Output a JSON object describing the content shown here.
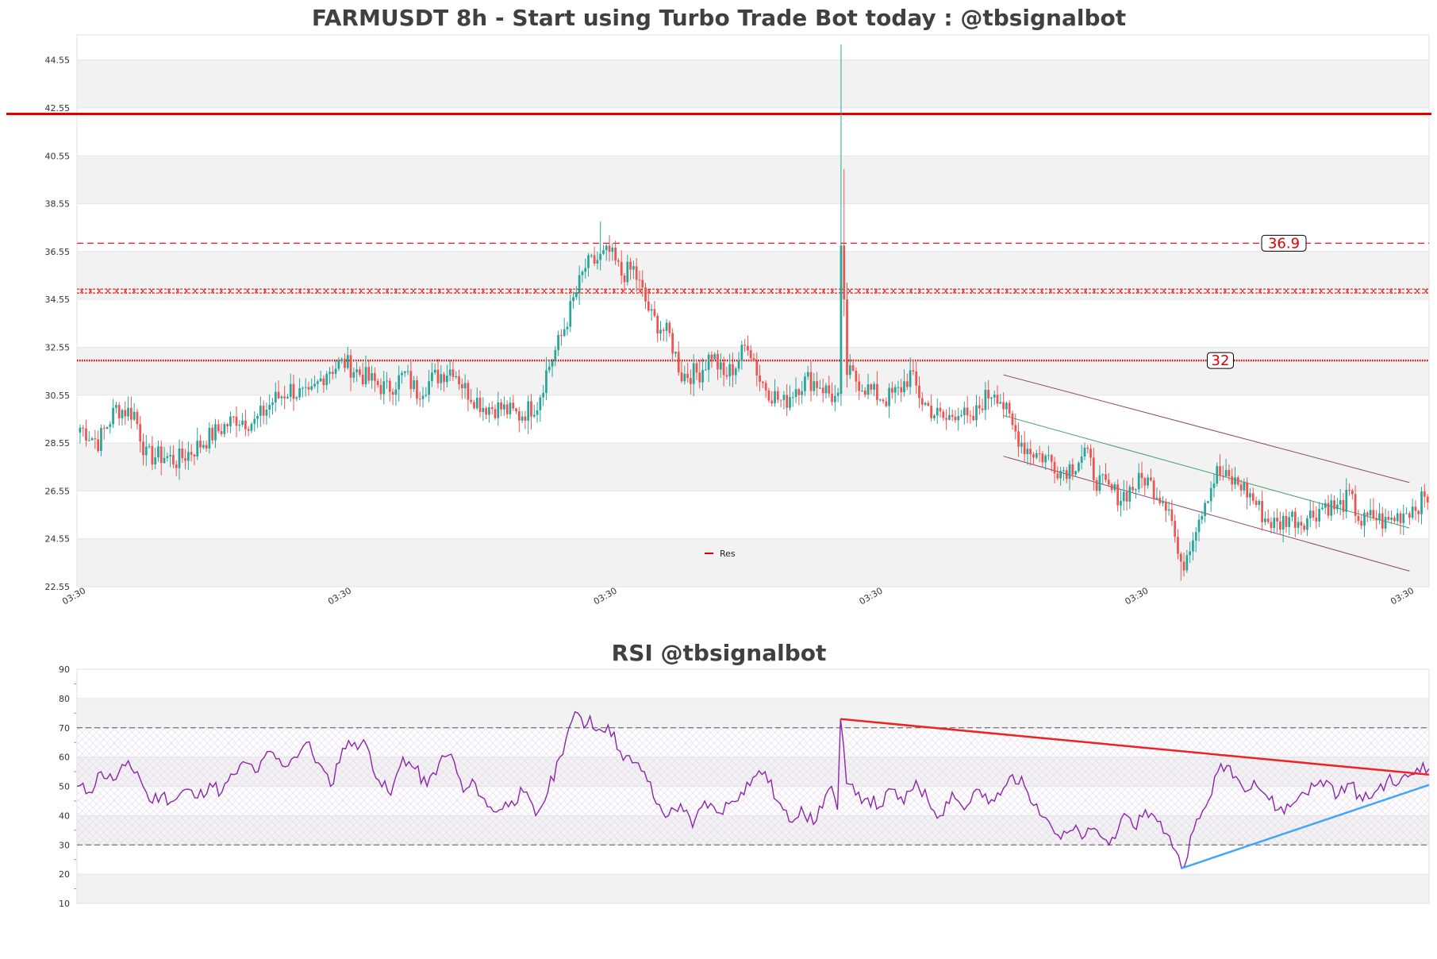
{
  "colors": {
    "up": "#26a69a",
    "down": "#ef5350",
    "resistance": "#e00000",
    "rsi_line": "#8e24aa",
    "rsi_up_trend": "#42a5f5",
    "rsi_down_trend": "#ee2222",
    "channel": "#8a4a68",
    "channel_mid": "#3ea36a",
    "band_shade": "#f2f2f2"
  },
  "chart_data": [
    {
      "type": "candlestick",
      "title": "FARMUSDT 8h - Start using Turbo Trade Bot today : @tbsignalbot",
      "ylim": [
        22.55,
        45.6
      ],
      "yticks": [
        "22.55",
        "24.55",
        "26.55",
        "28.55",
        "30.55",
        "32.55",
        "34.55",
        "36.55",
        "38.55",
        "40.55",
        "42.55",
        "44.55"
      ],
      "xticks": [
        "03:30",
        "03:30",
        "03:30",
        "03:30",
        "03:30",
        "03:30"
      ],
      "legend": {
        "label": "Res",
        "placement": "bottom-center"
      },
      "levels": [
        {
          "value": 42.3,
          "style": "solid",
          "label": ""
        },
        {
          "value": 36.9,
          "style": "dashed",
          "label": "36.9"
        },
        {
          "value": 34.9,
          "style": "crossed",
          "label": ""
        },
        {
          "value": 32.0,
          "style": "dotted",
          "label": "32"
        }
      ],
      "close_path": [
        [
          0,
          29.2
        ],
        [
          6,
          28.6
        ],
        [
          12,
          30.0
        ],
        [
          18,
          29.8
        ],
        [
          22,
          28.0
        ],
        [
          28,
          28.0
        ],
        [
          32,
          27.8
        ],
        [
          38,
          28.3
        ],
        [
          44,
          28.9
        ],
        [
          52,
          29.6
        ],
        [
          58,
          29.4
        ],
        [
          64,
          30.3
        ],
        [
          70,
          30.8
        ],
        [
          76,
          30.4
        ],
        [
          82,
          31.6
        ],
        [
          88,
          31.9
        ],
        [
          96,
          31.2
        ],
        [
          102,
          30.8
        ],
        [
          108,
          31.4
        ],
        [
          112,
          30.7
        ],
        [
          118,
          31.3
        ],
        [
          124,
          31.7
        ],
        [
          128,
          30.8
        ],
        [
          134,
          30.1
        ],
        [
          140,
          30.0
        ],
        [
          146,
          29.7
        ],
        [
          152,
          30.2
        ],
        [
          155,
          31.5
        ],
        [
          160,
          33.0
        ],
        [
          164,
          34.5
        ],
        [
          168,
          35.9
        ],
        [
          172,
          36.2
        ],
        [
          176,
          36.5
        ],
        [
          180,
          35.6
        ],
        [
          184,
          35.8
        ],
        [
          190,
          33.8
        ],
        [
          196,
          33.0
        ],
        [
          200,
          31.4
        ],
        [
          206,
          31.5
        ],
        [
          210,
          32.3
        ],
        [
          214,
          31.3
        ],
        [
          218,
          31.8
        ],
        [
          222,
          32.8
        ],
        [
          226,
          31.2
        ],
        [
          230,
          30.6
        ],
        [
          234,
          30.2
        ],
        [
          238,
          30.9
        ],
        [
          242,
          31.2
        ],
        [
          246,
          31.0
        ],
        [
          250,
          30.5
        ],
        [
          252,
          30.3
        ],
        [
          253,
          36.8
        ],
        [
          255,
          31.5
        ],
        [
          260,
          31.0
        ],
        [
          264,
          30.6
        ],
        [
          268,
          30.4
        ],
        [
          272,
          30.7
        ],
        [
          276,
          31.4
        ],
        [
          280,
          30.3
        ],
        [
          284,
          29.8
        ],
        [
          288,
          29.5
        ],
        [
          292,
          30.0
        ],
        [
          296,
          29.3
        ],
        [
          300,
          30.3
        ],
        [
          304,
          30.8
        ],
        [
          306,
          30.4
        ],
        [
          310,
          29.2
        ],
        [
          314,
          28.4
        ],
        [
          318,
          28.1
        ],
        [
          322,
          27.9
        ],
        [
          326,
          27.4
        ],
        [
          330,
          27.6
        ],
        [
          334,
          28.2
        ],
        [
          338,
          27.0
        ],
        [
          342,
          26.6
        ],
        [
          346,
          26.3
        ],
        [
          350,
          26.7
        ],
        [
          354,
          27.1
        ],
        [
          358,
          26.5
        ],
        [
          362,
          26.0
        ],
        [
          364,
          24.6
        ],
        [
          366,
          23.2
        ],
        [
          370,
          24.8
        ],
        [
          374,
          26.2
        ],
        [
          378,
          27.3
        ],
        [
          382,
          27.0
        ],
        [
          386,
          26.8
        ],
        [
          390,
          26.2
        ],
        [
          394,
          25.4
        ],
        [
          398,
          25.1
        ],
        [
          402,
          25.5
        ],
        [
          406,
          25.3
        ],
        [
          410,
          25.6
        ],
        [
          414,
          26.0
        ],
        [
          418,
          25.8
        ],
        [
          422,
          26.3
        ],
        [
          426,
          25.2
        ],
        [
          430,
          25.5
        ],
        [
          434,
          25.2
        ],
        [
          438,
          25.5
        ],
        [
          442,
          25.8
        ],
        [
          446,
          26.1
        ],
        [
          448,
          26.3
        ]
      ],
      "spike": {
        "index": 253,
        "open": 30.6,
        "close": 36.8,
        "high": 45.2,
        "low": 30.1
      },
      "channel": {
        "upper": [
          [
            307,
            31.4
          ],
          [
            442,
            26.9
          ]
        ],
        "lower": [
          [
            307,
            28.0
          ],
          [
            442,
            23.2
          ]
        ],
        "mid": [
          [
            307,
            29.7
          ],
          [
            442,
            25.0
          ]
        ]
      },
      "candle_count": 449,
      "seed": 7
    },
    {
      "type": "line",
      "title": "RSI @tbsignalbot",
      "ylim": [
        10,
        90
      ],
      "yticks": [
        "10",
        "20",
        "30",
        "40",
        "50",
        "60",
        "70",
        "80",
        "90"
      ],
      "overbought": 70,
      "oversold": 30,
      "rsi_path": [
        [
          0,
          50
        ],
        [
          4,
          48
        ],
        [
          8,
          55
        ],
        [
          12,
          52
        ],
        [
          16,
          57
        ],
        [
          20,
          55
        ],
        [
          24,
          45
        ],
        [
          28,
          47
        ],
        [
          32,
          45
        ],
        [
          36,
          49
        ],
        [
          40,
          46
        ],
        [
          44,
          51
        ],
        [
          48,
          48
        ],
        [
          52,
          54
        ],
        [
          56,
          58
        ],
        [
          60,
          55
        ],
        [
          64,
          62
        ],
        [
          68,
          57
        ],
        [
          72,
          60
        ],
        [
          76,
          65
        ],
        [
          80,
          58
        ],
        [
          84,
          50
        ],
        [
          88,
          63
        ],
        [
          92,
          65
        ],
        [
          96,
          64
        ],
        [
          100,
          52
        ],
        [
          104,
          47
        ],
        [
          108,
          60
        ],
        [
          112,
          56
        ],
        [
          116,
          50
        ],
        [
          120,
          58
        ],
        [
          124,
          61
        ],
        [
          128,
          48
        ],
        [
          132,
          51
        ],
        [
          136,
          43
        ],
        [
          140,
          42
        ],
        [
          144,
          45
        ],
        [
          148,
          48
        ],
        [
          152,
          40
        ],
        [
          156,
          48
        ],
        [
          160,
          60
        ],
        [
          163,
          70
        ],
        [
          166,
          75
        ],
        [
          168,
          70
        ],
        [
          170,
          74
        ],
        [
          172,
          69
        ],
        [
          176,
          71
        ],
        [
          180,
          62
        ],
        [
          184,
          58
        ],
        [
          188,
          55
        ],
        [
          192,
          44
        ],
        [
          196,
          40
        ],
        [
          200,
          44
        ],
        [
          204,
          36
        ],
        [
          208,
          45
        ],
        [
          212,
          41
        ],
        [
          216,
          44
        ],
        [
          220,
          48
        ],
        [
          224,
          53
        ],
        [
          228,
          55
        ],
        [
          232,
          45
        ],
        [
          236,
          38
        ],
        [
          240,
          43
        ],
        [
          244,
          37
        ],
        [
          248,
          47
        ],
        [
          250,
          50
        ],
        [
          252,
          42
        ],
        [
          253,
          73
        ],
        [
          255,
          51
        ],
        [
          258,
          47
        ],
        [
          262,
          46
        ],
        [
          266,
          43
        ],
        [
          270,
          49
        ],
        [
          274,
          44
        ],
        [
          278,
          52
        ],
        [
          282,
          45
        ],
        [
          286,
          40
        ],
        [
          290,
          48
        ],
        [
          294,
          42
        ],
        [
          298,
          49
        ],
        [
          302,
          44
        ],
        [
          306,
          47
        ],
        [
          310,
          54
        ],
        [
          314,
          50
        ],
        [
          318,
          44
        ],
        [
          322,
          38
        ],
        [
          326,
          32
        ],
        [
          330,
          35
        ],
        [
          334,
          33
        ],
        [
          338,
          35
        ],
        [
          342,
          30
        ],
        [
          346,
          39
        ],
        [
          350,
          36
        ],
        [
          354,
          42
        ],
        [
          358,
          38
        ],
        [
          362,
          33
        ],
        [
          364,
          28
        ],
        [
          366,
          22
        ],
        [
          370,
          35
        ],
        [
          374,
          43
        ],
        [
          378,
          55
        ],
        [
          382,
          57
        ],
        [
          386,
          50
        ],
        [
          390,
          52
        ],
        [
          394,
          47
        ],
        [
          398,
          42
        ],
        [
          402,
          43
        ],
        [
          406,
          48
        ],
        [
          410,
          50
        ],
        [
          414,
          52
        ],
        [
          418,
          47
        ],
        [
          422,
          51
        ],
        [
          426,
          45
        ],
        [
          430,
          48
        ],
        [
          434,
          52
        ],
        [
          438,
          51
        ],
        [
          442,
          54
        ],
        [
          446,
          58
        ],
        [
          448,
          56
        ]
      ],
      "trendlines": [
        {
          "kind": "resistance",
          "from": [
            253,
            73.0
          ],
          "to": [
            449,
            54.0
          ]
        },
        {
          "kind": "support",
          "from": [
            366,
            22.0
          ],
          "to": [
            449,
            50.5
          ]
        }
      ],
      "seed": 11
    }
  ]
}
